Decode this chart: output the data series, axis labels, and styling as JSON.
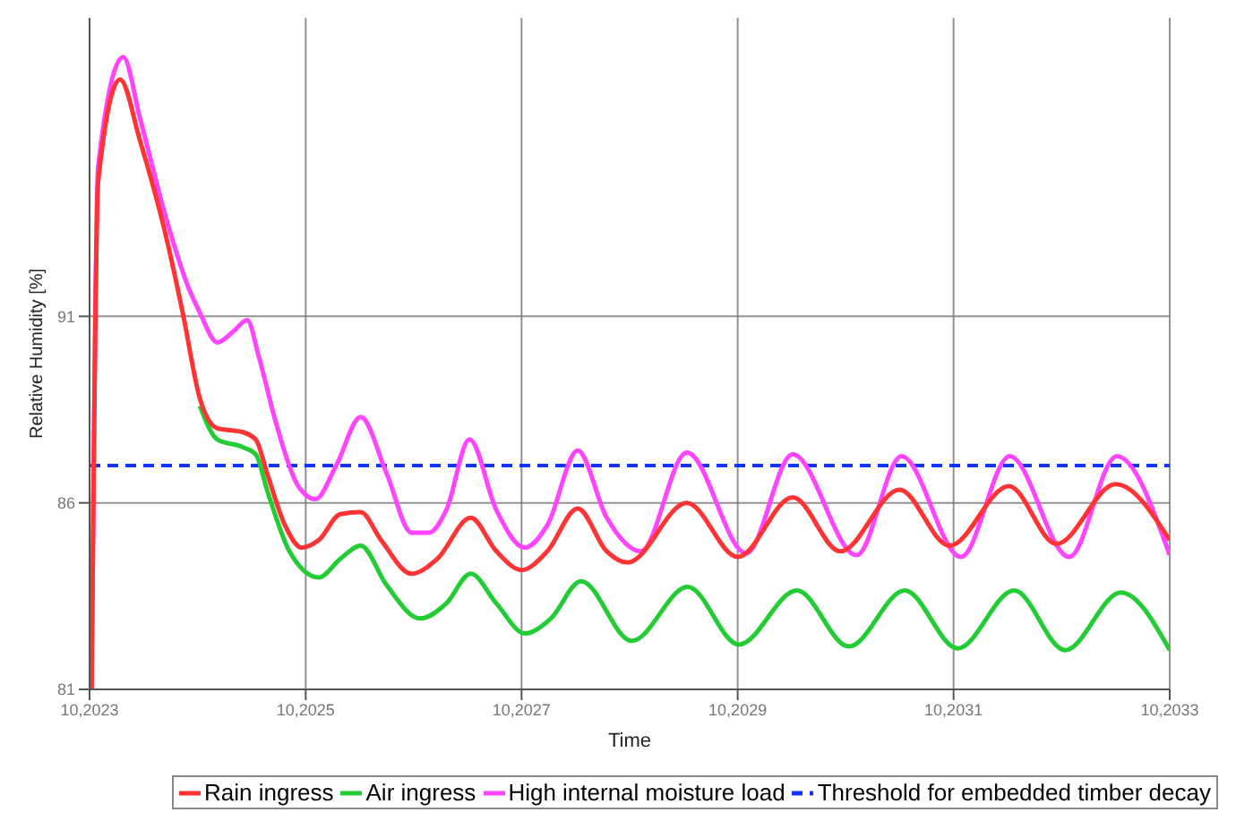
{
  "chart_data": {
    "type": "line",
    "xlabel": "Time",
    "ylabel": "Relative Humidity [%]",
    "xlim": [
      "2023-10-01",
      "2033-10-01"
    ],
    "ylim": [
      81,
      99
    ],
    "xticks": [
      {
        "value": "2023-10-01",
        "label": "10,2023"
      },
      {
        "value": "2025-10-01",
        "label": "10,2025"
      },
      {
        "value": "2027-10-01",
        "label": "10,2027"
      },
      {
        "value": "2029-10-01",
        "label": "10,2029"
      },
      {
        "value": "2031-10-01",
        "label": "10,2031"
      },
      {
        "value": "2033-10-01",
        "label": "10,2033"
      }
    ],
    "yticks": [
      81,
      86,
      91
    ],
    "grid": true,
    "legend": "bottom",
    "line_style": "solid",
    "marker": "none",
    "series": [
      {
        "name": "Rain ingress",
        "color": "#ff3333",
        "x": [
          "2023-10-08",
          "2023-10-30",
          "2024-01-12",
          "2024-03-20",
          "2024-06-17",
          "2024-08-11",
          "2024-10-08",
          "2024-12-06",
          "2025-02-28",
          "2025-04-15",
          "2025-05-25",
          "2025-07-23",
          "2025-09-17",
          "2025-11-14",
          "2026-01-26",
          "2026-04-05",
          "2026-06-13",
          "2026-09-24",
          "2026-12-20",
          "2027-04-12",
          "2027-07-08",
          "2027-10-01",
          "2027-12-27",
          "2028-04-08",
          "2028-07-15",
          "2028-09-24",
          "2029-04-12",
          "2029-10-01",
          "2030-04-05",
          "2030-09-13",
          "2031-04-01",
          "2031-09-17",
          "2032-04-05",
          "2032-09-13",
          "2033-04-01",
          "2033-10-01"
        ],
        "values": [
          81,
          94.6,
          97.35,
          95.7,
          93.1,
          91.1,
          88.8,
          88,
          87.9,
          87.7,
          86.75,
          85.4,
          84.8,
          85,
          85.7,
          85.75,
          85,
          84.1,
          84.5,
          85.6,
          84.7,
          84.2,
          84.7,
          85.85,
          84.7,
          84.4,
          86,
          84.55,
          86.15,
          84.7,
          86.35,
          84.85,
          86.45,
          84.9,
          86.5,
          85
        ]
      },
      {
        "name": "Air ingress",
        "color": "#22cc33",
        "x": [
          "2024-10-08",
          "2024-12-06",
          "2025-02-28",
          "2025-04-15",
          "2025-05-25",
          "2025-08-07",
          "2025-11-14",
          "2026-01-26",
          "2026-04-05",
          "2026-07-01",
          "2026-10-23",
          "2027-01-19",
          "2027-04-12",
          "2027-07-08",
          "2027-10-12",
          "2028-01-08",
          "2028-04-19",
          "2028-10-08",
          "2029-04-15",
          "2029-10-05",
          "2030-04-19",
          "2030-10-12",
          "2031-04-19",
          "2031-10-15",
          "2032-04-23",
          "2032-10-12",
          "2033-04-19",
          "2033-10-01"
        ],
        "values": [
          88.6,
          87.7,
          87.5,
          87.3,
          86.3,
          84.7,
          84,
          84.5,
          84.85,
          83.8,
          82.9,
          83.3,
          84.1,
          83.3,
          82.5,
          82.9,
          83.9,
          82.3,
          83.75,
          82.2,
          83.65,
          82.15,
          83.65,
          82.1,
          83.65,
          82.05,
          83.6,
          82.05
        ]
      },
      {
        "name": "High internal moisture load",
        "color": "#ff44ff",
        "x": [
          "2023-10-08",
          "2023-10-30",
          "2024-01-23",
          "2024-03-20",
          "2024-06-17",
          "2024-08-29",
          "2024-10-08",
          "2024-12-06",
          "2025-01-30",
          "2025-03-17",
          "2025-04-26",
          "2025-06-24",
          "2025-09-02",
          "2025-11-03",
          "2026-01-12",
          "2026-04-05",
          "2026-07-01",
          "2026-09-24",
          "2026-11-21",
          "2027-01-19",
          "2027-04-08",
          "2027-07-08",
          "2027-10-12",
          "2027-12-27",
          "2028-04-08",
          "2028-07-15",
          "2028-11-07",
          "2029-04-12",
          "2029-10-30",
          "2030-04-05",
          "2030-11-07",
          "2031-04-08",
          "2031-10-26",
          "2032-04-08",
          "2032-10-26",
          "2033-04-05",
          "2033-10-01"
        ],
        "values": [
          81,
          95,
          97.95,
          96.3,
          93.6,
          91.8,
          91.1,
          90.3,
          90.6,
          90.9,
          89.9,
          88.1,
          86.5,
          86.1,
          87,
          88.3,
          86.8,
          85.2,
          85.2,
          85.8,
          87.7,
          85.8,
          84.8,
          85.4,
          87.4,
          85.6,
          84.7,
          87.35,
          84.65,
          87.3,
          84.6,
          87.25,
          84.55,
          87.25,
          84.55,
          87.25,
          84.6
        ]
      }
    ],
    "ref_lines": [
      {
        "axis": "y",
        "value": 87,
        "label": "Threshold for embedded timber decay",
        "color": "#1133ff",
        "line_style": "dashed"
      }
    ]
  }
}
